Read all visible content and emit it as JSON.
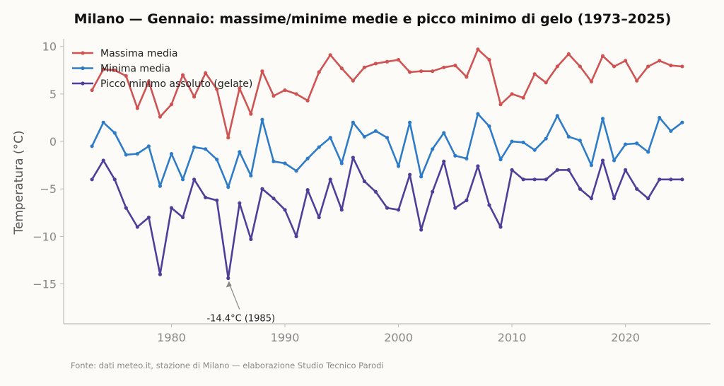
{
  "chart_data": {
    "type": "line",
    "title": "Milano — Gennaio: massime/minime medie e picco minimo di gelo (1973–2025)",
    "ylabel": "Temperatura (°C)",
    "xlabel": "",
    "xlim": [
      1970.5,
      2027.5
    ],
    "ylim": [
      -19.2,
      10.8
    ],
    "xticks": [
      1980,
      1990,
      2000,
      2010,
      2020
    ],
    "yticks": [
      -15,
      -10,
      -5,
      0,
      5,
      10
    ],
    "yticklabels": [
      "−15",
      "−10",
      "−5",
      "0",
      "5",
      "10"
    ],
    "grid": false,
    "legend_position": "top-left",
    "x": [
      1973,
      1974,
      1975,
      1976,
      1977,
      1978,
      1979,
      1980,
      1981,
      1982,
      1983,
      1984,
      1985,
      1986,
      1987,
      1988,
      1989,
      1990,
      1991,
      1992,
      1993,
      1994,
      1995,
      1996,
      1997,
      1998,
      1999,
      2000,
      2001,
      2002,
      2003,
      2004,
      2005,
      2006,
      2007,
      2008,
      2009,
      2010,
      2011,
      2012,
      2013,
      2014,
      2015,
      2016,
      2017,
      2018,
      2019,
      2020,
      2021,
      2022,
      2023,
      2024,
      2025
    ],
    "series": [
      {
        "name": "Massima media",
        "color": "#d05353",
        "values": [
          5.4,
          7.6,
          7.5,
          6.9,
          3.5,
          6.3,
          2.6,
          3.9,
          7.0,
          4.7,
          7.2,
          5.5,
          0.4,
          5.6,
          2.9,
          7.4,
          4.8,
          5.4,
          5.0,
          4.3,
          7.3,
          9.1,
          7.7,
          6.4,
          7.8,
          8.2,
          8.4,
          8.6,
          7.3,
          7.4,
          7.4,
          7.8,
          8.0,
          6.8,
          9.7,
          8.6,
          3.9,
          5.0,
          4.6,
          7.1,
          6.2,
          7.9,
          9.2,
          7.9,
          6.3,
          9.0,
          7.9,
          8.5,
          6.4,
          7.9,
          8.5,
          8.0,
          7.9
        ]
      },
      {
        "name": "Minima media",
        "color": "#2e7cc8",
        "values": [
          -0.5,
          2.0,
          0.9,
          -1.4,
          -1.3,
          -0.5,
          -4.7,
          -1.3,
          -4.0,
          -0.6,
          -0.8,
          -1.9,
          -4.8,
          -1.1,
          -3.6,
          2.3,
          -2.1,
          -2.3,
          -3.1,
          -1.8,
          -0.6,
          0.4,
          -2.3,
          2.0,
          0.5,
          1.1,
          0.4,
          -2.6,
          2.0,
          -3.7,
          -0.8,
          0.9,
          -1.5,
          -1.8,
          2.9,
          1.6,
          -1.9,
          0.0,
          -0.1,
          -0.9,
          0.3,
          2.7,
          0.5,
          0.1,
          -2.5,
          2.4,
          -2.0,
          -0.3,
          -0.2,
          -1.1,
          2.5,
          1.1,
          2.0
        ]
      },
      {
        "name": "Picco minimo assoluto (gelate)",
        "color": "#4f3f99",
        "values": [
          -4.0,
          -2.0,
          -4.0,
          -7.0,
          -9.0,
          -8.0,
          -14.0,
          -7.0,
          -8.0,
          -4.0,
          -5.9,
          -6.2,
          -14.4,
          -6.5,
          -10.3,
          -5.0,
          -6.0,
          -7.2,
          -10.0,
          -5.1,
          -8.0,
          -4.0,
          -7.2,
          -1.7,
          -4.2,
          -5.3,
          -7.0,
          -7.2,
          -3.5,
          -9.3,
          -5.3,
          -2.1,
          -7.0,
          -6.2,
          -2.6,
          -6.7,
          -9.0,
          -3.0,
          -4.0,
          -4.0,
          -4.0,
          -3.0,
          -3.0,
          -5.0,
          -6.0,
          -2.0,
          -6.0,
          -3.0,
          -5.0,
          -6.0,
          -4.0,
          -4.0,
          -4.0
        ]
      }
    ],
    "annotation": {
      "text": "-14.4°C (1985)",
      "x": 1985,
      "y": -14.4
    },
    "source": "Fonte: dati meteo.it, stazione di Milano — elaborazione Studio Tecnico Parodi"
  }
}
